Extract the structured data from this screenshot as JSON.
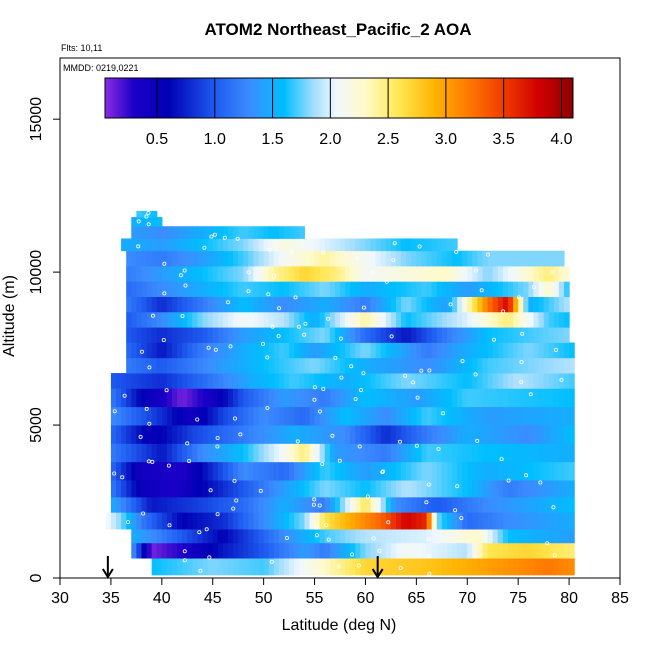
{
  "chart_data": {
    "type": "heatmap",
    "title": "ATOM2 Northeast_Pacific_2 AOA",
    "flights_label": "Flts: 10,11",
    "dates_label": "MMDD: 0219,0221",
    "xlabel": "Latitude (deg N)",
    "ylabel": "Altitude (m)",
    "xlim": [
      30,
      85
    ],
    "ylim": [
      0,
      17000
    ],
    "x_ticks": [
      30,
      35,
      40,
      45,
      50,
      55,
      60,
      65,
      70,
      75,
      80,
      85
    ],
    "y_ticks": [
      0,
      5000,
      10000,
      15000
    ],
    "colorbar": {
      "range": [
        0.05,
        4.1
      ],
      "ticks": [
        0.5,
        1.0,
        1.5,
        2.0,
        2.5,
        3.0,
        3.5,
        4.0
      ],
      "tick_labels": [
        "0.5",
        "1.0",
        "1.5",
        "2.0",
        "2.5",
        "3.0",
        "3.5",
        "4.0"
      ],
      "stops": [
        {
          "v": 0.05,
          "c": "#8a2be2"
        },
        {
          "v": 0.3,
          "c": "#1c00c8"
        },
        {
          "v": 0.6,
          "c": "#0000b4"
        },
        {
          "v": 1.0,
          "c": "#1e5af0"
        },
        {
          "v": 1.3,
          "c": "#3c8cff"
        },
        {
          "v": 1.6,
          "c": "#00beff"
        },
        {
          "v": 1.85,
          "c": "#a0dcff"
        },
        {
          "v": 2.05,
          "c": "#f0f8ff"
        },
        {
          "v": 2.3,
          "c": "#fffac8"
        },
        {
          "v": 2.6,
          "c": "#ffe650"
        },
        {
          "v": 2.9,
          "c": "#ffb400"
        },
        {
          "v": 3.2,
          "c": "#ff7800"
        },
        {
          "v": 3.5,
          "c": "#f03c00"
        },
        {
          "v": 3.8,
          "c": "#d20000"
        },
        {
          "v": 4.1,
          "c": "#8c0000"
        }
      ]
    },
    "arrows_latitude": [
      34.7,
      61.2
    ],
    "bands": [
      {
        "z": [
          100,
          650
        ],
        "x": [
          39,
          80.5
        ],
        "v": [
          [
            39,
            1.6
          ],
          [
            45,
            1.8
          ],
          [
            50,
            1.7
          ],
          [
            55,
            2.2
          ],
          [
            60,
            2.7
          ],
          [
            66,
            2.8
          ],
          [
            72,
            3.0
          ],
          [
            78,
            3.2
          ],
          [
            80.5,
            3.1
          ]
        ]
      },
      {
        "z": [
          650,
          1150
        ],
        "x": [
          37,
          80.5
        ],
        "v": [
          [
            37,
            1.4
          ],
          [
            39,
            0.1
          ],
          [
            42,
            0.3
          ],
          [
            46,
            0.7
          ],
          [
            50,
            1.0
          ],
          [
            54,
            1.4
          ],
          [
            56,
            1.2
          ],
          [
            60,
            1.8
          ],
          [
            64,
            2.1
          ],
          [
            70,
            1.9
          ],
          [
            72,
            2.6
          ],
          [
            76,
            2.7
          ],
          [
            80.5,
            2.5
          ]
        ]
      },
      {
        "z": [
          1150,
          1600
        ],
        "x": [
          37,
          80.5
        ],
        "v": [
          [
            37,
            1.5
          ],
          [
            42,
            1.0
          ],
          [
            46,
            0.6
          ],
          [
            52,
            1.3
          ],
          [
            56,
            1.7
          ],
          [
            60,
            1.9
          ],
          [
            66,
            2.0
          ],
          [
            71,
            2.3
          ],
          [
            74,
            1.6
          ],
          [
            80.5,
            1.4
          ]
        ]
      },
      {
        "z": [
          1600,
          2150
        ],
        "x": [
          34.5,
          80.5
        ],
        "v": [
          [
            34.5,
            2.1
          ],
          [
            36,
            1.8
          ],
          [
            38,
            1.2
          ],
          [
            42,
            0.6
          ],
          [
            46,
            0.8
          ],
          [
            50,
            1.3
          ],
          [
            54,
            1.8
          ],
          [
            56,
            2.6
          ],
          [
            59,
            3.0
          ],
          [
            61.5,
            3.3
          ],
          [
            64,
            3.8
          ],
          [
            66,
            3.6
          ],
          [
            67,
            1.8
          ],
          [
            70,
            1.1
          ],
          [
            74,
            1.3
          ],
          [
            80.5,
            1.5
          ]
        ]
      },
      {
        "z": [
          2150,
          2650
        ],
        "x": [
          35,
          80.5
        ],
        "v": [
          [
            35,
            1.5
          ],
          [
            39,
            0.7
          ],
          [
            44,
            0.9
          ],
          [
            48,
            1.1
          ],
          [
            52,
            1.5
          ],
          [
            56,
            1.2
          ],
          [
            60,
            2.6
          ],
          [
            63,
            1.3
          ],
          [
            67,
            1.0
          ],
          [
            72,
            1.3
          ],
          [
            80.5,
            1.6
          ]
        ]
      },
      {
        "z": [
          2650,
          3200
        ],
        "x": [
          35,
          80.5
        ],
        "v": [
          [
            35,
            1.2
          ],
          [
            38,
            0.5
          ],
          [
            41,
            0.3
          ],
          [
            44,
            0.6
          ],
          [
            48,
            1.0
          ],
          [
            52,
            1.4
          ],
          [
            56,
            1.8
          ],
          [
            60,
            1.6
          ],
          [
            64,
            1.9
          ],
          [
            70,
            1.6
          ],
          [
            74,
            1.2
          ],
          [
            80.5,
            1.5
          ]
        ]
      },
      {
        "z": [
          3200,
          3800
        ],
        "x": [
          35,
          80.5
        ],
        "v": [
          [
            35,
            1.1
          ],
          [
            38,
            0.4
          ],
          [
            42,
            0.3
          ],
          [
            45,
            0.8
          ],
          [
            48,
            1.3
          ],
          [
            52,
            1.1
          ],
          [
            56,
            1.7
          ],
          [
            60,
            1.4
          ],
          [
            66,
            1.8
          ],
          [
            72,
            1.5
          ],
          [
            80.5,
            1.7
          ]
        ]
      },
      {
        "z": [
          3800,
          4400
        ],
        "x": [
          35,
          80.5
        ],
        "v": [
          [
            35,
            1.2
          ],
          [
            40,
            0.7
          ],
          [
            44,
            1.3
          ],
          [
            48,
            1.6
          ],
          [
            52,
            2.1
          ],
          [
            54,
            2.5
          ],
          [
            57,
            1.4
          ],
          [
            62,
            1.2
          ],
          [
            66,
            1.7
          ],
          [
            72,
            1.6
          ],
          [
            80.5,
            1.5
          ]
        ]
      },
      {
        "z": [
          4400,
          5000
        ],
        "x": [
          35,
          80.5
        ],
        "v": [
          [
            35,
            1.1
          ],
          [
            39,
            0.5
          ],
          [
            43,
            0.9
          ],
          [
            48,
            1.2
          ],
          [
            53,
            1.5
          ],
          [
            58,
            1.3
          ],
          [
            62,
            0.8
          ],
          [
            66,
            1.2
          ],
          [
            70,
            1.5
          ],
          [
            76,
            1.3
          ],
          [
            80.5,
            1.6
          ]
        ]
      },
      {
        "z": [
          5000,
          5600
        ],
        "x": [
          35,
          80.5
        ],
        "v": [
          [
            35,
            1.3
          ],
          [
            40,
            0.8
          ],
          [
            43,
            0.4
          ],
          [
            46,
            0.9
          ],
          [
            50,
            1.3
          ],
          [
            54,
            1.1
          ],
          [
            58,
            1.6
          ],
          [
            62,
            1.3
          ],
          [
            66,
            1.7
          ],
          [
            72,
            1.4
          ],
          [
            80.5,
            1.5
          ]
        ]
      },
      {
        "z": [
          5600,
          6200
        ],
        "x": [
          35,
          80.5
        ],
        "v": [
          [
            35,
            1.2
          ],
          [
            38,
            0.6
          ],
          [
            42,
            0.1
          ],
          [
            45,
            0.4
          ],
          [
            48,
            1.0
          ],
          [
            52,
            1.4
          ],
          [
            56,
            1.2
          ],
          [
            60,
            1.6
          ],
          [
            65,
            1.4
          ],
          [
            70,
            1.7
          ],
          [
            80.5,
            1.6
          ]
        ]
      },
      {
        "z": [
          6200,
          6700
        ],
        "x": [
          35,
          80.5
        ],
        "v": [
          [
            35,
            1.0
          ],
          [
            40,
            0.8
          ],
          [
            44,
            1.1
          ],
          [
            49,
            1.5
          ],
          [
            53,
            1.7
          ],
          [
            58,
            1.5
          ],
          [
            64,
            1.8
          ],
          [
            70,
            1.6
          ],
          [
            75,
            1.9
          ],
          [
            80.5,
            1.7
          ]
        ]
      },
      {
        "z": [
          6700,
          7200
        ],
        "x": [
          36.5,
          80.5
        ],
        "v": [
          [
            36.5,
            1.2
          ],
          [
            40,
            1.0
          ],
          [
            46,
            1.4
          ],
          [
            50,
            1.6
          ],
          [
            55,
            1.8
          ],
          [
            60,
            1.5
          ],
          [
            66,
            1.3
          ],
          [
            72,
            1.7
          ],
          [
            80.5,
            1.9
          ]
        ]
      },
      {
        "z": [
          7200,
          7700
        ],
        "x": [
          36.5,
          80.5
        ],
        "v": [
          [
            36.5,
            1.1
          ],
          [
            40,
            0.7
          ],
          [
            44,
            1.2
          ],
          [
            48,
            1.5
          ],
          [
            52,
            1.7
          ],
          [
            55,
            1.4
          ],
          [
            60,
            1.8
          ],
          [
            66,
            1.2
          ],
          [
            70,
            1.5
          ],
          [
            76,
            1.8
          ],
          [
            80.5,
            1.6
          ]
        ]
      },
      {
        "z": [
          7700,
          8200
        ],
        "x": [
          36.5,
          80
        ],
        "v": [
          [
            36.5,
            1.0
          ],
          [
            40,
            0.8
          ],
          [
            44,
            1.0
          ],
          [
            48,
            1.4
          ],
          [
            52,
            1.6
          ],
          [
            56,
            1.8
          ],
          [
            60,
            1.1
          ],
          [
            64,
            0.7
          ],
          [
            68,
            1.2
          ],
          [
            72,
            1.6
          ],
          [
            80,
            1.8
          ]
        ]
      },
      {
        "z": [
          8200,
          8700
        ],
        "x": [
          36.5,
          80
        ],
        "v": [
          [
            36.5,
            1.0
          ],
          [
            40,
            1.3
          ],
          [
            44,
            1.8
          ],
          [
            48,
            2.1
          ],
          [
            52,
            1.9
          ],
          [
            55,
            1.5
          ],
          [
            60,
            2.4
          ],
          [
            64,
            1.6
          ],
          [
            70,
            2.0
          ],
          [
            74,
            2.5
          ],
          [
            78,
            1.7
          ],
          [
            80,
            1.6
          ]
        ]
      },
      {
        "z": [
          8700,
          9200
        ],
        "x": [
          36.5,
          80
        ],
        "v": [
          [
            36.5,
            1.2
          ],
          [
            40,
            0.8
          ],
          [
            44,
            1.2
          ],
          [
            48,
            1.6
          ],
          [
            52,
            1.3
          ],
          [
            56,
            1.5
          ],
          [
            60,
            1.2
          ],
          [
            64,
            1.8
          ],
          [
            68,
            1.4
          ],
          [
            72,
            3.2
          ],
          [
            74,
            3.8
          ],
          [
            76,
            1.5
          ],
          [
            80,
            1.9
          ]
        ]
      },
      {
        "z": [
          9200,
          9700
        ],
        "x": [
          36.5,
          80
        ],
        "v": [
          [
            36.5,
            1.1
          ],
          [
            40,
            1.3
          ],
          [
            44,
            1.5
          ],
          [
            48,
            1.7
          ],
          [
            52,
            1.6
          ],
          [
            56,
            1.8
          ],
          [
            60,
            1.5
          ],
          [
            66,
            1.7
          ],
          [
            70,
            1.4
          ],
          [
            76,
            1.8
          ],
          [
            78,
            2.3
          ],
          [
            80,
            1.6
          ]
        ]
      },
      {
        "z": [
          9700,
          10200
        ],
        "x": [
          36.5,
          80
        ],
        "v": [
          [
            36.5,
            1.2
          ],
          [
            40,
            1.4
          ],
          [
            44,
            1.6
          ],
          [
            48,
            1.8
          ],
          [
            51,
            2.4
          ],
          [
            54,
            2.7
          ],
          [
            57,
            2.5
          ],
          [
            60,
            2.1
          ],
          [
            64,
            2.2
          ],
          [
            68,
            2.3
          ],
          [
            72,
            1.8
          ],
          [
            78,
            2.5
          ],
          [
            80,
            2.2
          ]
        ]
      },
      {
        "z": [
          10200,
          10700
        ],
        "x": [
          36.5,
          79.5
        ],
        "v": [
          [
            36.5,
            1.3
          ],
          [
            40,
            1.2
          ],
          [
            44,
            1.4
          ],
          [
            48,
            1.7
          ],
          [
            52,
            2.1
          ],
          [
            56,
            2.4
          ],
          [
            60,
            2.1
          ],
          [
            64,
            1.8
          ],
          [
            69,
            1.6
          ],
          [
            72,
            1.8
          ],
          [
            79.5,
            1.8
          ]
        ]
      },
      {
        "z": [
          10700,
          11100
        ],
        "x": [
          36,
          69
        ],
        "v": [
          [
            36,
            1.5
          ],
          [
            40,
            1.4
          ],
          [
            44,
            1.6
          ],
          [
            48,
            1.8
          ],
          [
            52,
            2.2
          ],
          [
            56,
            2.0
          ],
          [
            60,
            1.8
          ],
          [
            64,
            1.6
          ],
          [
            69,
            1.7
          ]
        ]
      },
      {
        "z": [
          11100,
          11500
        ],
        "x": [
          37,
          54
        ],
        "v": [
          [
            37,
            1.4
          ],
          [
            40,
            1.3
          ],
          [
            44,
            1.5
          ],
          [
            48,
            1.7
          ],
          [
            51,
            1.6
          ],
          [
            54,
            1.7
          ]
        ]
      },
      {
        "z": [
          11500,
          11800
        ],
        "x": [
          37,
          40
        ],
        "v": [
          [
            37,
            1.5
          ],
          [
            40,
            1.6
          ]
        ]
      },
      {
        "z": [
          11800,
          12000
        ],
        "x": [
          37.5,
          39.5
        ],
        "v": [
          [
            37.5,
            1.7
          ],
          [
            39.5,
            1.6
          ]
        ]
      }
    ]
  }
}
